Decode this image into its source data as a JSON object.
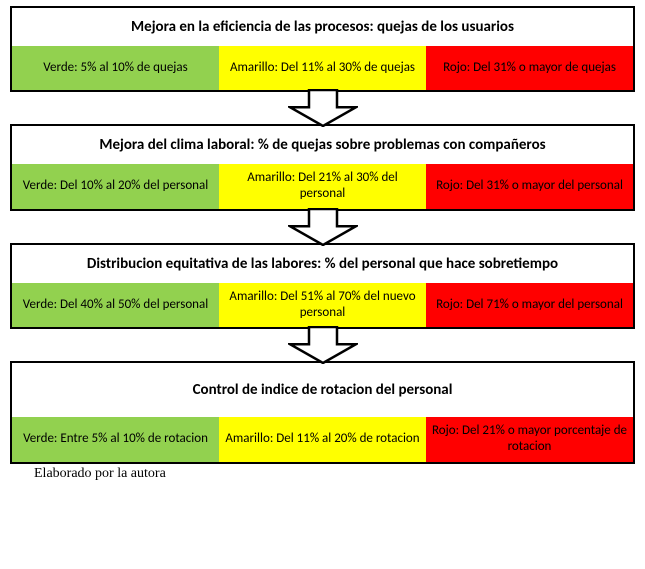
{
  "colors": {
    "green": "#92d14f",
    "yellow": "#ffff00",
    "red": "#ff0000",
    "border": "#000000",
    "text": "#000000",
    "bg": "#ffffff",
    "arrow_fill": "#ffffff",
    "arrow_stroke": "#000000"
  },
  "arrow": {
    "width": 70,
    "height": 38,
    "stroke_width": 2.5
  },
  "cards": [
    {
      "title": "Mejora en la eficiencia de las procesos: quejas de los usuarios",
      "title_tall": false,
      "cells": [
        {
          "text": "Verde: 5% al 10% de quejas",
          "bg_key": "green"
        },
        {
          "text": "Amarillo: Del 11% al 30% de quejas",
          "bg_key": "yellow"
        },
        {
          "text": "Rojo: Del 31% o mayor de quejas",
          "bg_key": "red"
        }
      ]
    },
    {
      "title": "Mejora del clima laboral: % de quejas sobre problemas con compañeros",
      "title_tall": false,
      "cells": [
        {
          "text": "Verde: Del 10% al 20% del personal",
          "bg_key": "green"
        },
        {
          "text": "Amarillo: Del 21% al 30% del personal",
          "bg_key": "yellow"
        },
        {
          "text": "Rojo: Del 31% o mayor del personal",
          "bg_key": "red"
        }
      ]
    },
    {
      "title": "Distribucion equitativa de las labores: % del personal que hace sobretiempo",
      "title_tall": false,
      "cells": [
        {
          "text": "Verde: Del 40% al 50% del personal",
          "bg_key": "green"
        },
        {
          "text": "Amarillo: Del 51% al 70% del nuevo personal",
          "bg_key": "yellow"
        },
        {
          "text": "Rojo: Del 71% o mayor del personal",
          "bg_key": "red"
        }
      ]
    },
    {
      "title": "Control de indice de rotacion del personal",
      "title_tall": true,
      "cells": [
        {
          "text": "Verde: Entre 5% al 10% de rotacion",
          "bg_key": "green"
        },
        {
          "text": "Amarillo: Del 11% al 20% de rotacion",
          "bg_key": "yellow"
        },
        {
          "text": "Rojo: Del 21% o mayor porcentaje de rotacion",
          "bg_key": "red"
        }
      ]
    }
  ],
  "footnote": "Elaborado por la autora"
}
